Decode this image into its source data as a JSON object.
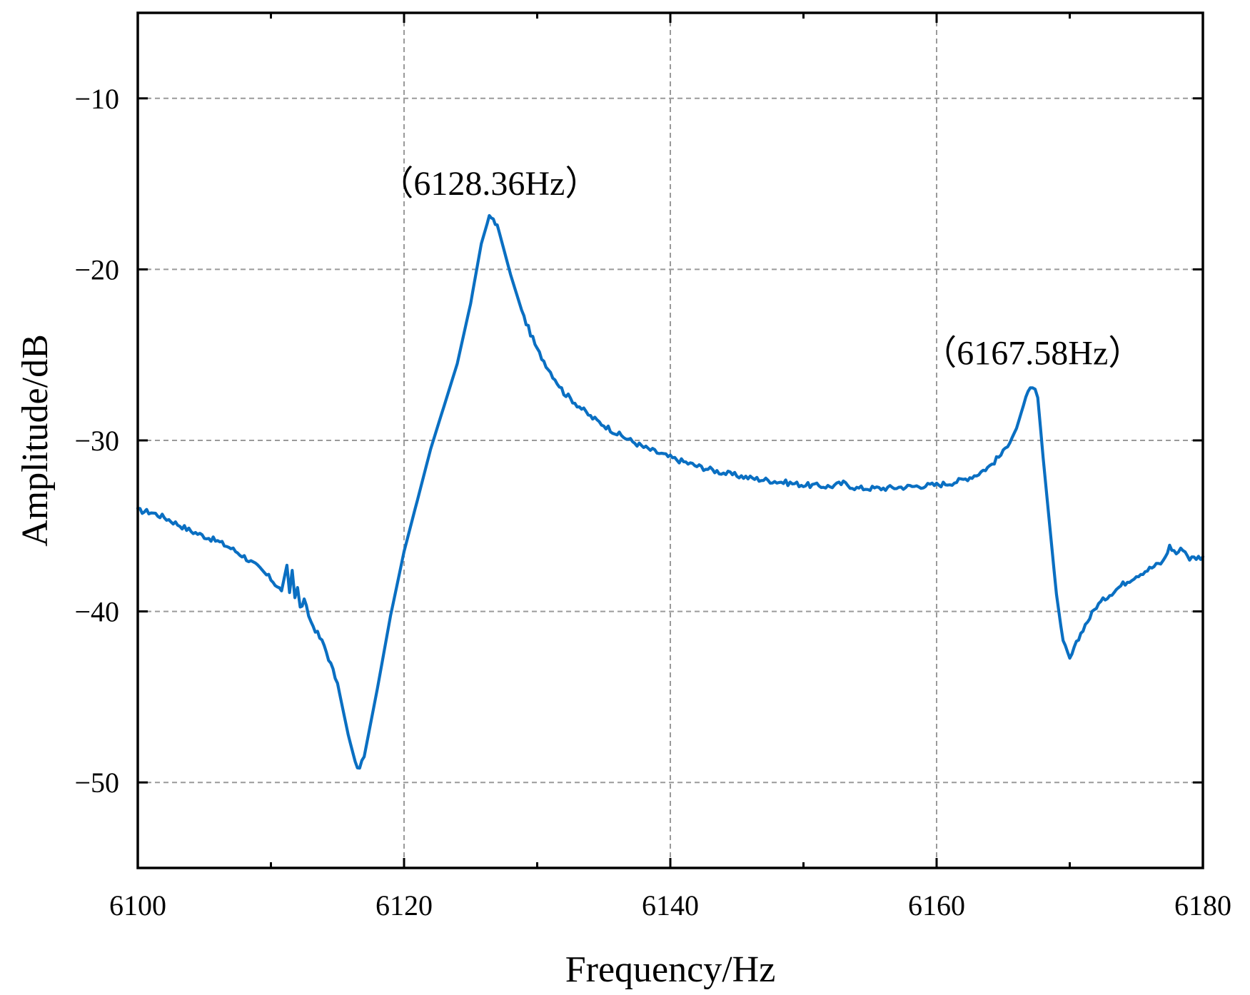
{
  "chart_data": {
    "type": "line",
    "title": "",
    "xlabel": "Frequency/Hz",
    "ylabel": "Amplitude/dB",
    "xlim": [
      6100,
      6180
    ],
    "ylim": [
      -55,
      -5
    ],
    "x_ticks": [
      6100,
      6120,
      6140,
      6160,
      6180
    ],
    "x_minor_ticks": [
      6110,
      6130,
      6150,
      6170
    ],
    "y_ticks": [
      -10,
      -20,
      -30,
      -40,
      -50
    ],
    "grid": true,
    "grid_style": "dashed",
    "legend": "none",
    "series": [
      {
        "name": "",
        "color": "#0a6fc2",
        "points": [
          [
            6100,
            -34.1
          ],
          [
            6101,
            -34.2
          ],
          [
            6102,
            -34.5
          ],
          [
            6103,
            -34.9
          ],
          [
            6104,
            -35.3
          ],
          [
            6105,
            -35.6
          ],
          [
            6106,
            -35.9
          ],
          [
            6107,
            -36.3
          ],
          [
            6108,
            -36.8
          ],
          [
            6109,
            -37.4
          ],
          [
            6110,
            -38.1
          ],
          [
            6110.8,
            -38.8
          ],
          [
            6111.2,
            -37.3
          ],
          [
            6111.4,
            -38.9
          ],
          [
            6111.6,
            -37.6
          ],
          [
            6111.8,
            -39.2
          ],
          [
            6112,
            -38.6
          ],
          [
            6112.2,
            -39.8
          ],
          [
            6112.5,
            -39.4
          ],
          [
            6113,
            -40.6
          ],
          [
            6114,
            -42.0
          ],
          [
            6115,
            -44.2
          ],
          [
            6115.8,
            -47.2
          ],
          [
            6116.5,
            -49.3
          ],
          [
            6117,
            -48.5
          ],
          [
            6118,
            -44.5
          ],
          [
            6119,
            -40.2
          ],
          [
            6120,
            -36.5
          ],
          [
            6121,
            -33.5
          ],
          [
            6122,
            -30.5
          ],
          [
            6123,
            -28.0
          ],
          [
            6124,
            -25.5
          ],
          [
            6125,
            -22.0
          ],
          [
            6125.8,
            -18.5
          ],
          [
            6126.4,
            -16.9
          ],
          [
            6127,
            -17.4
          ],
          [
            6128,
            -20.3
          ],
          [
            6129,
            -22.8
          ],
          [
            6130,
            -24.7
          ],
          [
            6131,
            -26.0
          ],
          [
            6132,
            -27.2
          ],
          [
            6133,
            -27.9
          ],
          [
            6134,
            -28.6
          ],
          [
            6135,
            -29.1
          ],
          [
            6136,
            -29.6
          ],
          [
            6137,
            -30.0
          ],
          [
            6138,
            -30.4
          ],
          [
            6139,
            -30.7
          ],
          [
            6140,
            -31.0
          ],
          [
            6142,
            -31.5
          ],
          [
            6144,
            -31.9
          ],
          [
            6146,
            -32.2
          ],
          [
            6148,
            -32.4
          ],
          [
            6150,
            -32.6
          ],
          [
            6152,
            -32.7
          ],
          [
            6153,
            -32.5
          ],
          [
            6154,
            -32.8
          ],
          [
            6156,
            -32.8
          ],
          [
            6158,
            -32.7
          ],
          [
            6160,
            -32.6
          ],
          [
            6161,
            -32.5
          ],
          [
            6162,
            -32.3
          ],
          [
            6163,
            -32.0
          ],
          [
            6164,
            -31.5
          ],
          [
            6165,
            -30.7
          ],
          [
            6166,
            -29.3
          ],
          [
            6166.7,
            -27.5
          ],
          [
            6167.2,
            -26.8
          ],
          [
            6167.6,
            -27.5
          ],
          [
            6168,
            -31.0
          ],
          [
            6168.5,
            -35.0
          ],
          [
            6169,
            -39.0
          ],
          [
            6169.5,
            -41.8
          ],
          [
            6170,
            -42.8
          ],
          [
            6170.5,
            -41.9
          ],
          [
            6171,
            -41.0
          ],
          [
            6172,
            -39.7
          ],
          [
            6173,
            -39.0
          ],
          [
            6174,
            -38.4
          ],
          [
            6175,
            -37.9
          ],
          [
            6176,
            -37.5
          ],
          [
            6177,
            -37.1
          ],
          [
            6177.5,
            -36.2
          ],
          [
            6178,
            -36.6
          ],
          [
            6178.5,
            -36.3
          ],
          [
            6179,
            -36.9
          ],
          [
            6180,
            -36.8
          ]
        ]
      }
    ],
    "annotations": [
      {
        "text": "（6128.36Hz）",
        "x": 6126.4,
        "y": -16.9
      },
      {
        "text": "（6167.58Hz）",
        "x": 6167.2,
        "y": -26.8
      }
    ]
  }
}
